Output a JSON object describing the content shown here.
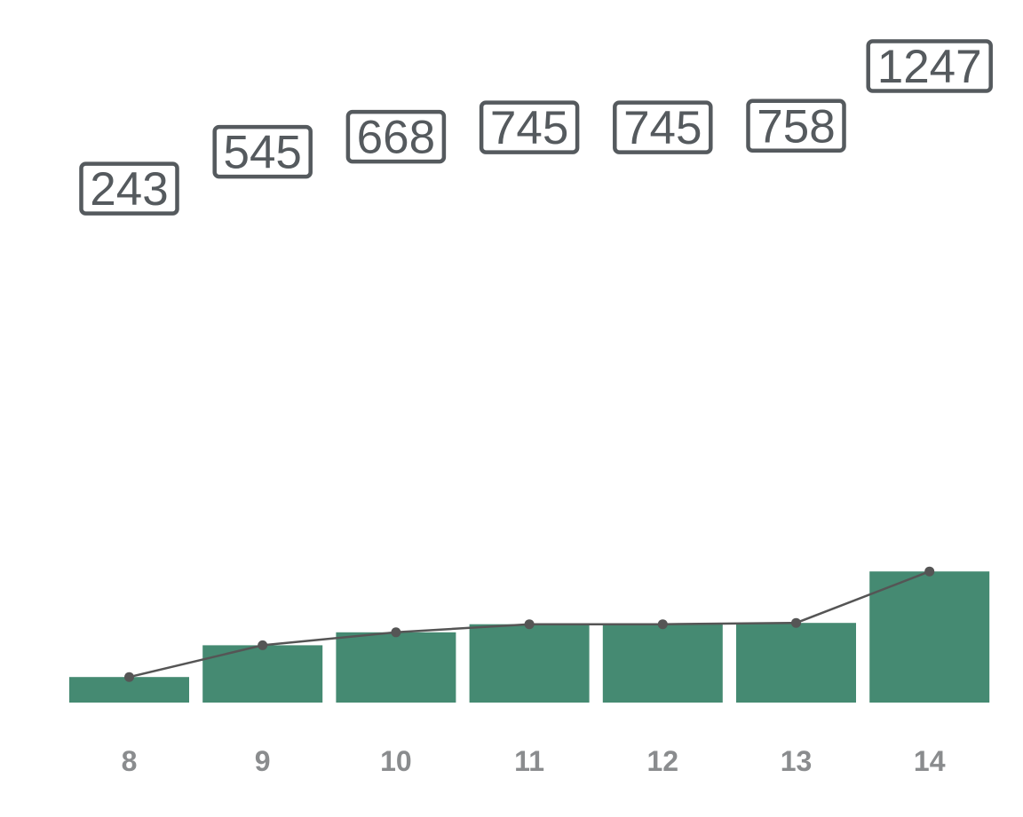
{
  "chart_data": {
    "type": "bar",
    "categories": [
      "8",
      "9",
      "10",
      "11",
      "12",
      "13",
      "14"
    ],
    "values": [
      243,
      545,
      668,
      745,
      745,
      758,
      1247
    ],
    "overlay_line": true,
    "data_labels": true,
    "colors": {
      "bar": "#458a72",
      "line": "#555555",
      "label_border": "#555a5e",
      "label_text": "#555a5e",
      "tick_text": "#8a8c8e"
    }
  }
}
